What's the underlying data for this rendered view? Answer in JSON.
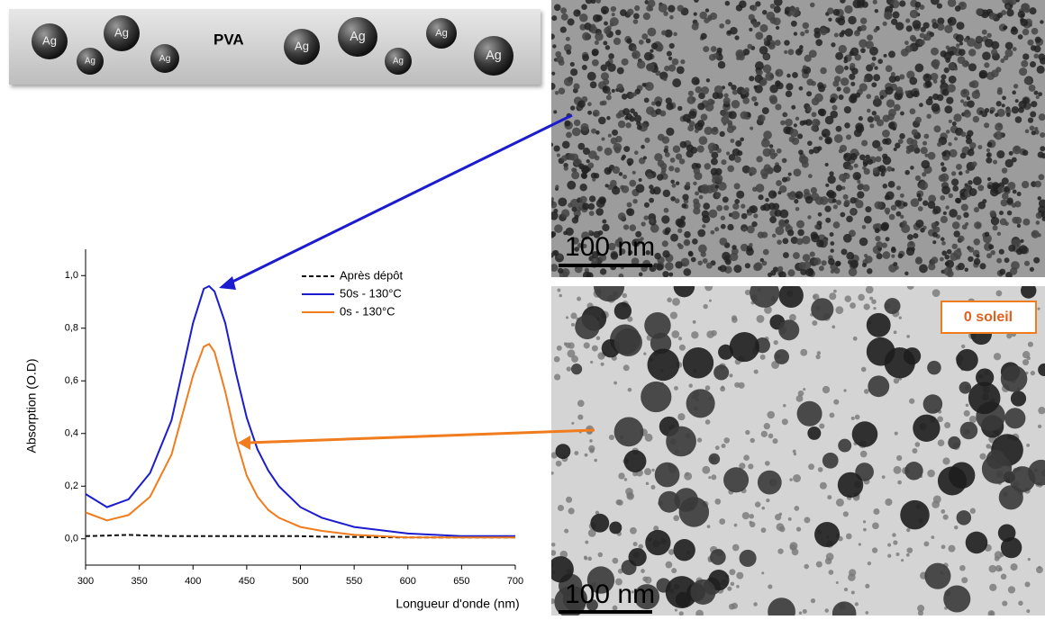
{
  "diagram": {
    "label": "PVA",
    "particles": [
      "Ag",
      "Ag",
      "Ag",
      "Ag",
      "Ag",
      "Ag",
      "Ag",
      "Ag",
      "Ag"
    ]
  },
  "images": [
    {
      "scale": "100 nm"
    },
    {
      "scale": "100 nm",
      "label": "0 soleil"
    }
  ],
  "chart_data": {
    "type": "line",
    "xlabel": "Longueur d'onde (nm)",
    "ylabel": "Absorption (O.D)",
    "x": [
      300,
      320,
      340,
      360,
      380,
      400,
      410,
      415,
      420,
      430,
      440,
      450,
      460,
      470,
      480,
      500,
      520,
      550,
      600,
      650,
      700
    ],
    "series": [
      {
        "name": "Après dépôt",
        "color": "#111111",
        "linestyle": "dashed",
        "values": [
          0.01,
          0.012,
          0.015,
          0.012,
          0.01,
          0.01,
          0.01,
          0.01,
          0.01,
          0.01,
          0.01,
          0.01,
          0.01,
          0.01,
          0.01,
          0.01,
          0.008,
          0.007,
          0.005,
          0.005,
          0.005
        ]
      },
      {
        "name": "50s - 130°C",
        "color": "#1c1ccf",
        "linestyle": "solid",
        "values": [
          0.17,
          0.12,
          0.15,
          0.25,
          0.45,
          0.82,
          0.95,
          0.96,
          0.94,
          0.82,
          0.63,
          0.46,
          0.34,
          0.26,
          0.2,
          0.12,
          0.08,
          0.045,
          0.02,
          0.01,
          0.01
        ]
      },
      {
        "name": "0s - 130°C",
        "color": "#f07c1e",
        "linestyle": "solid",
        "values": [
          0.1,
          0.07,
          0.09,
          0.16,
          0.32,
          0.62,
          0.73,
          0.74,
          0.71,
          0.56,
          0.38,
          0.24,
          0.16,
          0.11,
          0.08,
          0.045,
          0.03,
          0.015,
          0.005,
          0.005,
          0.005
        ]
      }
    ],
    "xlim": [
      300,
      700
    ],
    "xticks": [
      300,
      350,
      400,
      450,
      500,
      550,
      600,
      650,
      700
    ],
    "ylim": [
      -0.1,
      1.1
    ],
    "yticks": [
      {
        "value": 0,
        "label": "0,0"
      },
      {
        "value": 0.2,
        "label": "0,2"
      },
      {
        "value": 0.4,
        "label": "0,4"
      },
      {
        "value": 0.6,
        "label": "0,6"
      },
      {
        "value": 0.8,
        "label": "0,8"
      },
      {
        "value": 1,
        "label": "1,0"
      }
    ],
    "legend": "upper right"
  }
}
